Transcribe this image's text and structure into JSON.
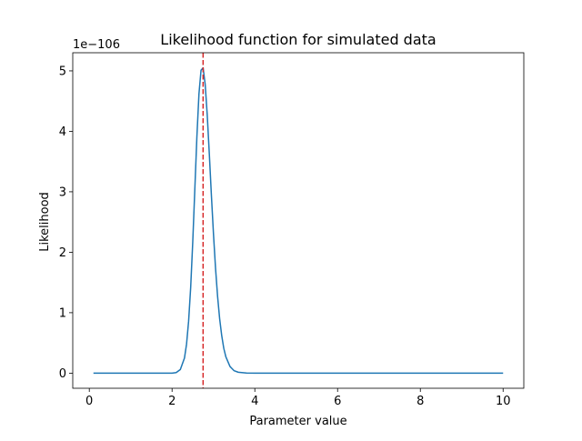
{
  "chart_data": {
    "type": "line",
    "title": "Likelihood function for simulated data",
    "xlabel": "Parameter value",
    "ylabel": "Likelihood",
    "y_offset_label": "1e−106",
    "y_scale_exponent": -106,
    "xlim": [
      -0.4,
      10.5
    ],
    "ylim": [
      -0.25,
      5.3
    ],
    "xticks": [
      0,
      2,
      4,
      6,
      8,
      10
    ],
    "yticks": [
      0,
      1,
      2,
      3,
      4,
      5
    ],
    "grid": false,
    "legend": "none",
    "series": [
      {
        "color": "#1f77b4",
        "x": [
          0.1,
          1.0,
          1.8,
          2.0,
          2.1,
          2.2,
          2.3,
          2.35,
          2.4,
          2.45,
          2.5,
          2.55,
          2.6,
          2.65,
          2.7,
          2.75,
          2.8,
          2.85,
          2.9,
          2.95,
          3.0,
          3.05,
          3.1,
          3.15,
          3.2,
          3.25,
          3.3,
          3.4,
          3.5,
          3.6,
          3.8,
          4.0,
          5.0,
          7.0,
          10.0
        ],
        "y": [
          0,
          0,
          0,
          0.0,
          0.01,
          0.06,
          0.25,
          0.48,
          0.86,
          1.42,
          2.17,
          3.04,
          3.91,
          4.62,
          5.01,
          5.05,
          4.78,
          4.27,
          3.63,
          2.95,
          2.31,
          1.74,
          1.27,
          0.9,
          0.62,
          0.41,
          0.27,
          0.11,
          0.04,
          0.015,
          0.002,
          0.0,
          0,
          0,
          0
        ]
      }
    ],
    "reference_lines": [
      {
        "orientation": "vertical",
        "x": 2.75,
        "color": "#d62728",
        "style": "dashed"
      }
    ]
  }
}
